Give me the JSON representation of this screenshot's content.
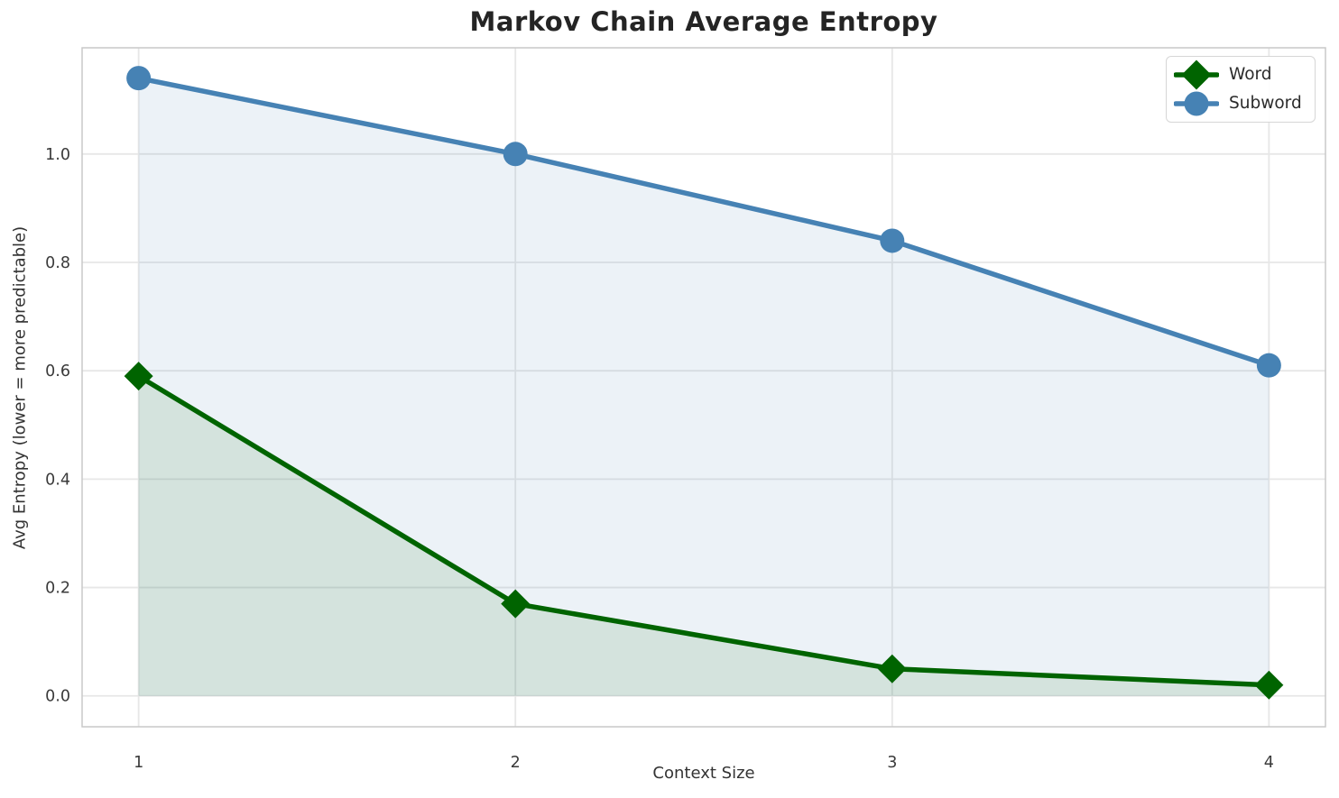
{
  "chart_data": {
    "type": "line",
    "title": "Markov Chain Average Entropy",
    "xlabel": "Context Size",
    "ylabel": "Avg Entropy (lower = more predictable)",
    "x": [
      1,
      2,
      3,
      4
    ],
    "series": [
      {
        "name": "Word",
        "values": [
          0.59,
          0.17,
          0.05,
          0.02
        ],
        "color": "#006400",
        "marker": "diamond",
        "fill_opacity": 0.1
      },
      {
        "name": "Subword",
        "values": [
          1.14,
          1.0,
          0.84,
          0.61
        ],
        "color": "#4682b4",
        "marker": "circle",
        "fill_opacity": 0.1
      }
    ],
    "xlim": [
      0.85,
      4.15
    ],
    "ylim": [
      -0.057,
      1.196
    ],
    "xticks": {
      "values": [
        1,
        2,
        3,
        4
      ],
      "labels": [
        "1",
        "2",
        "3",
        "4"
      ]
    },
    "yticks": {
      "values": [
        0.0,
        0.2,
        0.4,
        0.6,
        0.8,
        1.0
      ],
      "labels": [
        "0.0",
        "0.2",
        "0.4",
        "0.6",
        "0.8",
        "1.0"
      ]
    },
    "grid": true,
    "legend_position": "upper right",
    "area_fill_to_zero": true
  }
}
